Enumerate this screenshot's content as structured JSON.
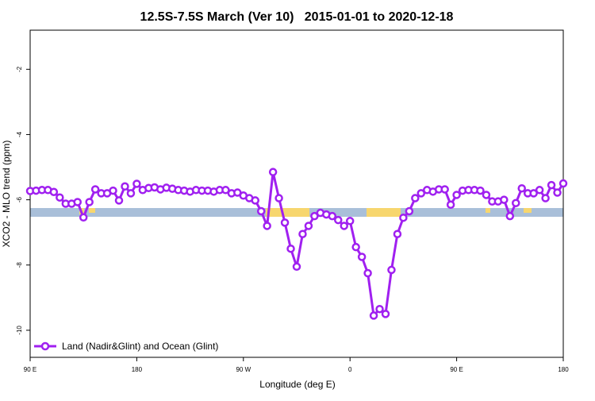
{
  "chart_data": {
    "type": "line",
    "title": "12.5S-7.5S March (Ver 10)   2015-01-01 to 2020-12-18",
    "xlabel": "Longitude (deg E)",
    "ylabel": "XCO2 - MLO trend (ppm)",
    "x": [
      90,
      95,
      100,
      105,
      110,
      115,
      120,
      125,
      130,
      135,
      140,
      145,
      150,
      155,
      160,
      165,
      170,
      175,
      180,
      185,
      190,
      195,
      200,
      205,
      210,
      215,
      220,
      225,
      230,
      235,
      240,
      245,
      250,
      255,
      260,
      265,
      270,
      275,
      280,
      285,
      290,
      295,
      300,
      305,
      310,
      315,
      320,
      325,
      330,
      335,
      340,
      345,
      350,
      355,
      360,
      365,
      370,
      375,
      380,
      385,
      390,
      395,
      400,
      405,
      410,
      415,
      420,
      425,
      430,
      435,
      440,
      445,
      450,
      455,
      460,
      465,
      470,
      475,
      480,
      485,
      490,
      495,
      500,
      505,
      510,
      515,
      520,
      525,
      530,
      535,
      540
    ],
    "series": [
      {
        "name": "Land (Nadir&Glint) and Ocean (Glint)",
        "color": "#a020f0",
        "values": [
          -5.73,
          -5.72,
          -5.7,
          -5.7,
          -5.76,
          -5.93,
          -6.12,
          -6.12,
          -6.07,
          -6.54,
          -6.07,
          -5.68,
          -5.8,
          -5.8,
          -5.72,
          -6.02,
          -5.59,
          -5.8,
          -5.51,
          -5.7,
          -5.64,
          -5.62,
          -5.68,
          -5.63,
          -5.66,
          -5.7,
          -5.72,
          -5.75,
          -5.7,
          -5.72,
          -5.72,
          -5.75,
          -5.7,
          -5.7,
          -5.8,
          -5.78,
          -5.87,
          -5.95,
          -6.02,
          -6.35,
          -6.8,
          -5.15,
          -5.95,
          -6.7,
          -7.5,
          -8.05,
          -7.05,
          -6.8,
          -6.5,
          -6.4,
          -6.45,
          -6.5,
          -6.62,
          -6.8,
          -6.65,
          -7.45,
          -7.75,
          -8.25,
          -9.55,
          -9.35,
          -9.5,
          -8.15,
          -7.05,
          -6.55,
          -6.35,
          -5.95,
          -5.8,
          -5.7,
          -5.75,
          -5.68,
          -5.68,
          -6.15,
          -5.85,
          -5.72,
          -5.7,
          -5.7,
          -5.72,
          -5.85,
          -6.05,
          -6.05,
          -6.0,
          -6.5,
          -6.1,
          -5.65,
          -5.8,
          -5.8,
          -5.7,
          -5.95,
          -5.55,
          -5.78,
          -5.5
        ]
      }
    ],
    "xlim": [
      90,
      540
    ],
    "xticks": [
      {
        "value": 90,
        "label": "90 E"
      },
      180,
      {
        "value": 270,
        "label": "90 W"
      },
      {
        "value": 360,
        "label": "0"
      },
      {
        "value": 450,
        "label": "90 E"
      },
      {
        "value": 540,
        "label": "180"
      }
    ],
    "ylim": [
      -10.83,
      -0.8
    ],
    "yticks": [
      -10,
      -8,
      -6,
      -4,
      -2
    ],
    "legend": "bottom-left"
  }
}
